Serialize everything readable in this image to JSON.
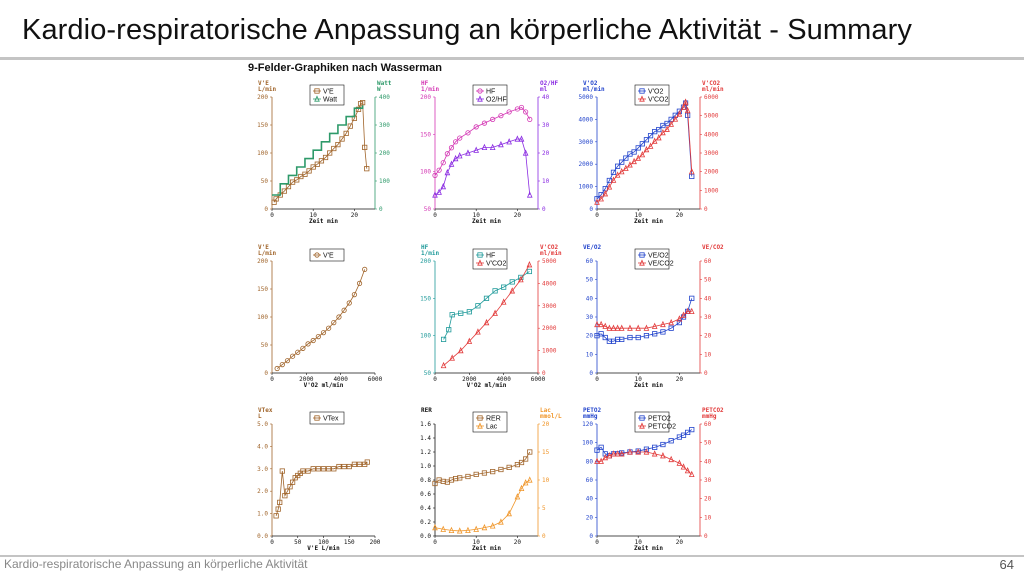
{
  "slide": {
    "title": "Kardio-respiratorische Anpassung an körperliche Aktivität - Summary",
    "footer": "Kardio-respiratorische Anpassung an körperliche Aktivität",
    "page_number": "64",
    "figure_heading": "9-Felder-Graphiken nach Wasserman"
  },
  "colors": {
    "brown": "#a0642a",
    "green": "#2e9a6a",
    "magenta": "#d436b4",
    "purple": "#8a2be2",
    "blue": "#2244cc",
    "red": "#e23a3a",
    "teal": "#1f9a9a",
    "orange": "#f0962a",
    "black": "#111111"
  },
  "chart_data": [
    {
      "type": "line",
      "panel": 1,
      "xlabel": "Zeit  min",
      "x_ticks": [
        "0",
        "10",
        "20"
      ],
      "xlim": [
        0,
        25
      ],
      "left_axis": {
        "label": "V'E",
        "unit": "L/min",
        "ticks": [
          "0",
          "50",
          "100",
          "150",
          "200"
        ],
        "lim": [
          0,
          200
        ],
        "color": "brown"
      },
      "right_axis": {
        "label": "Watt",
        "unit": "W",
        "ticks": [
          "0",
          "100",
          "200",
          "300",
          "400"
        ],
        "lim": [
          0,
          400
        ],
        "color": "green"
      },
      "series": [
        {
          "name": "V'E",
          "axis": "left",
          "color": "brown",
          "marker": "square",
          "x": [
            0.5,
            1,
            2,
            3,
            4,
            5,
            6,
            7,
            8,
            9,
            10,
            11,
            12,
            13,
            14,
            15,
            16,
            17,
            18,
            19,
            20,
            21,
            21.5,
            22,
            22.5,
            23
          ],
          "y": [
            12,
            18,
            25,
            32,
            40,
            48,
            52,
            58,
            62,
            68,
            75,
            80,
            86,
            92,
            100,
            108,
            115,
            125,
            135,
            148,
            162,
            178,
            188,
            190,
            110,
            72
          ]
        },
        {
          "name": "Watt",
          "axis": "right",
          "color": "green",
          "marker": "triangle",
          "step": true,
          "x": [
            0,
            2,
            2,
            4,
            4,
            6,
            6,
            8,
            8,
            10,
            10,
            12,
            12,
            14,
            14,
            16,
            16,
            18,
            18,
            20,
            20,
            22,
            22
          ],
          "y": [
            50,
            50,
            90,
            90,
            120,
            120,
            150,
            150,
            180,
            180,
            210,
            210,
            240,
            240,
            270,
            270,
            300,
            300,
            330,
            330,
            360,
            360,
            370
          ]
        }
      ]
    },
    {
      "type": "line",
      "panel": 2,
      "xlabel": "Zeit  min",
      "x_ticks": [
        "0",
        "10",
        "20"
      ],
      "xlim": [
        0,
        25
      ],
      "left_axis": {
        "label": "HF",
        "unit": "1/min",
        "ticks": [
          "50",
          "100",
          "150",
          "200"
        ],
        "lim": [
          50,
          200
        ],
        "color": "magenta"
      },
      "right_axis": {
        "label": "O2/HF",
        "unit": "ml",
        "ticks": [
          "0",
          "10",
          "20",
          "30",
          "40"
        ],
        "lim": [
          0,
          40
        ],
        "color": "purple"
      },
      "series": [
        {
          "name": "HF",
          "axis": "left",
          "color": "magenta",
          "marker": "circle",
          "x": [
            0,
            1,
            2,
            3,
            4,
            5,
            6,
            8,
            10,
            12,
            14,
            16,
            18,
            20,
            21,
            22,
            23
          ],
          "y": [
            95,
            102,
            112,
            124,
            132,
            140,
            145,
            152,
            160,
            165,
            170,
            175,
            180,
            184,
            186,
            180,
            170
          ]
        },
        {
          "name": "O2/HF",
          "axis": "right",
          "color": "purple",
          "marker": "triangle",
          "x": [
            0,
            1,
            2,
            3,
            4,
            5,
            6,
            8,
            10,
            12,
            14,
            16,
            18,
            20,
            21,
            22,
            23
          ],
          "y": [
            5,
            6,
            8,
            13,
            16,
            18,
            19,
            20,
            21,
            22,
            22,
            23,
            24,
            25,
            25,
            20,
            5
          ]
        }
      ]
    },
    {
      "type": "line",
      "panel": 3,
      "xlabel": "Zeit  min",
      "x_ticks": [
        "0",
        "10",
        "20"
      ],
      "xlim": [
        0,
        25
      ],
      "left_axis": {
        "label": "V'O2",
        "unit": "ml/min",
        "ticks": [
          "0",
          "1000",
          "2000",
          "3000",
          "4000",
          "5000"
        ],
        "lim": [
          0,
          5500
        ],
        "color": "blue"
      },
      "right_axis": {
        "label": "V'CO2",
        "unit": "ml/min",
        "ticks": [
          "0",
          "1000",
          "2000",
          "3000",
          "4000",
          "5000",
          "6000"
        ],
        "lim": [
          0,
          6600
        ],
        "color": "red"
      },
      "series": [
        {
          "name": "V'O2",
          "axis": "left",
          "color": "blue",
          "marker": "square",
          "x": [
            0,
            1,
            2,
            3,
            4,
            5,
            6,
            7,
            8,
            9,
            10,
            11,
            12,
            13,
            14,
            15,
            16,
            17,
            18,
            19,
            20,
            21,
            21.5,
            22,
            23
          ],
          "y": [
            500,
            700,
            1000,
            1400,
            1800,
            2100,
            2300,
            2500,
            2700,
            2800,
            3000,
            3200,
            3400,
            3600,
            3800,
            3900,
            4100,
            4200,
            4400,
            4600,
            4800,
            5000,
            5200,
            4600,
            1600
          ]
        },
        {
          "name": "V'CO2",
          "axis": "right",
          "color": "red",
          "marker": "triangle",
          "x": [
            0,
            1,
            2,
            3,
            4,
            5,
            6,
            7,
            8,
            9,
            10,
            11,
            12,
            13,
            14,
            15,
            16,
            17,
            18,
            19,
            20,
            21,
            21.5,
            22,
            23
          ],
          "y": [
            400,
            600,
            900,
            1300,
            1700,
            2000,
            2200,
            2400,
            2600,
            2800,
            3000,
            3200,
            3500,
            3700,
            4000,
            4200,
            4500,
            4700,
            5000,
            5300,
            5600,
            6000,
            6300,
            5800,
            2200
          ]
        }
      ]
    },
    {
      "type": "scatter",
      "panel": 4,
      "xlabel": "V'O2  ml/min",
      "x_ticks": [
        "0",
        "2000",
        "4000",
        "6000"
      ],
      "xlim": [
        0,
        6000
      ],
      "left_axis": {
        "label": "V'E",
        "unit": "L/min",
        "ticks": [
          "0",
          "50",
          "100",
          "150",
          "200"
        ],
        "lim": [
          0,
          200
        ],
        "color": "brown"
      },
      "series": [
        {
          "name": "V'E",
          "axis": "left",
          "color": "brown",
          "marker": "circle",
          "x": [
            300,
            600,
            900,
            1200,
            1500,
            1800,
            2100,
            2400,
            2700,
            3000,
            3300,
            3600,
            3900,
            4200,
            4500,
            4800,
            5100,
            5400
          ],
          "y": [
            8,
            15,
            22,
            30,
            37,
            44,
            52,
            58,
            65,
            72,
            80,
            90,
            100,
            112,
            125,
            140,
            160,
            185
          ]
        }
      ]
    },
    {
      "type": "line",
      "panel": 5,
      "xlabel": "V'O2  ml/min",
      "x_ticks": [
        "0",
        "2000",
        "4000",
        "6000"
      ],
      "xlim": [
        0,
        6000
      ],
      "left_axis": {
        "label": "HF",
        "unit": "1/min",
        "ticks": [
          "50",
          "100",
          "150",
          "200"
        ],
        "lim": [
          50,
          200
        ],
        "color": "teal"
      },
      "right_axis": {
        "label": "V'CO2",
        "unit": "ml/min",
        "ticks": [
          "0",
          "1000",
          "2000",
          "3000",
          "4000",
          "5000"
        ],
        "lim": [
          0,
          6000
        ],
        "color": "red"
      },
      "series": [
        {
          "name": "HF",
          "axis": "left",
          "color": "teal",
          "marker": "square",
          "x": [
            500,
            800,
            1000,
            1500,
            2000,
            2500,
            3000,
            3500,
            4000,
            4500,
            5000,
            5500
          ],
          "y": [
            95,
            108,
            128,
            130,
            132,
            140,
            150,
            160,
            165,
            172,
            178,
            186
          ]
        },
        {
          "name": "V'CO2",
          "axis": "right",
          "color": "red",
          "marker": "triangle",
          "x": [
            500,
            1000,
            1500,
            2000,
            2500,
            3000,
            3500,
            4000,
            4500,
            5000,
            5500
          ],
          "y": [
            400,
            800,
            1200,
            1700,
            2200,
            2700,
            3200,
            3800,
            4400,
            5000,
            5800
          ]
        }
      ]
    },
    {
      "type": "line",
      "panel": 6,
      "xlabel": "Zeit  min",
      "x_ticks": [
        "0",
        "10",
        "20"
      ],
      "xlim": [
        0,
        25
      ],
      "left_axis": {
        "label": "VE/O2",
        "unit": "",
        "ticks": [
          "0",
          "10",
          "20",
          "30",
          "40",
          "50",
          "60"
        ],
        "lim": [
          0,
          60
        ],
        "color": "blue"
      },
      "right_axis": {
        "label": "VE/CO2",
        "unit": "",
        "ticks": [
          "0",
          "10",
          "20",
          "30",
          "40",
          "50",
          "60"
        ],
        "lim": [
          0,
          60
        ],
        "color": "red"
      },
      "series": [
        {
          "name": "VE/O2",
          "axis": "left",
          "color": "blue",
          "marker": "square",
          "x": [
            0,
            1,
            2,
            3,
            4,
            5,
            6,
            8,
            10,
            12,
            14,
            16,
            18,
            20,
            21,
            22,
            23
          ],
          "y": [
            20,
            21,
            19,
            17,
            17,
            18,
            18,
            19,
            19,
            20,
            21,
            22,
            24,
            27,
            30,
            33,
            40
          ]
        },
        {
          "name": "VE/CO2",
          "axis": "right",
          "color": "red",
          "marker": "triangle",
          "x": [
            0,
            1,
            2,
            3,
            4,
            5,
            6,
            8,
            10,
            12,
            14,
            16,
            18,
            20,
            21,
            22,
            23
          ],
          "y": [
            26,
            26,
            25,
            24,
            24,
            24,
            24,
            24,
            24,
            24,
            25,
            26,
            27,
            29,
            31,
            33,
            33
          ]
        }
      ]
    },
    {
      "type": "scatter",
      "panel": 7,
      "xlabel": "V'E  L/min",
      "x_ticks": [
        "0",
        "50",
        "100",
        "150",
        "200"
      ],
      "xlim": [
        0,
        200
      ],
      "left_axis": {
        "label": "VTex",
        "unit": "L",
        "ticks": [
          "0.0",
          "1.0",
          "2.0",
          "3.0",
          "4.0",
          "5.0"
        ],
        "lim": [
          0,
          5
        ],
        "color": "brown"
      },
      "series": [
        {
          "name": "VTex",
          "axis": "left",
          "color": "brown",
          "marker": "square",
          "x": [
            8,
            12,
            15,
            20,
            25,
            30,
            35,
            40,
            45,
            50,
            55,
            60,
            70,
            80,
            90,
            100,
            110,
            120,
            130,
            140,
            150,
            160,
            170,
            180,
            185
          ],
          "y": [
            0.9,
            1.2,
            1.5,
            2.9,
            1.8,
            2.0,
            2.2,
            2.4,
            2.6,
            2.7,
            2.8,
            2.9,
            2.9,
            3.0,
            3.0,
            3.0,
            3.0,
            3.0,
            3.1,
            3.1,
            3.1,
            3.2,
            3.2,
            3.2,
            3.3
          ]
        }
      ]
    },
    {
      "type": "line",
      "panel": 8,
      "xlabel": "Zeit  min",
      "x_ticks": [
        "0",
        "10",
        "20"
      ],
      "xlim": [
        0,
        25
      ],
      "left_axis": {
        "label": "RER",
        "unit": "",
        "ticks": [
          "0.0",
          "0.2",
          "0.4",
          "0.6",
          "0.8",
          "1.0",
          "1.2",
          "1.4",
          "1.6"
        ],
        "lim": [
          0,
          1.6
        ],
        "color": "black"
      },
      "right_axis": {
        "label": "Lac",
        "unit": "mmol/L",
        "ticks": [
          "0",
          "5",
          "10",
          "15",
          "20"
        ],
        "lim": [
          0,
          20
        ],
        "color": "orange"
      },
      "series": [
        {
          "name": "RER",
          "axis": "left",
          "color": "brown",
          "marker": "square",
          "x": [
            0,
            1,
            2,
            3,
            4,
            5,
            6,
            8,
            10,
            12,
            14,
            16,
            18,
            20,
            21,
            22,
            23
          ],
          "y": [
            0.75,
            0.8,
            0.78,
            0.77,
            0.8,
            0.82,
            0.83,
            0.85,
            0.88,
            0.9,
            0.92,
            0.95,
            0.98,
            1.02,
            1.05,
            1.1,
            1.2
          ]
        },
        {
          "name": "Lac",
          "axis": "right",
          "color": "orange",
          "marker": "triangle",
          "x": [
            0,
            2,
            4,
            6,
            8,
            10,
            12,
            14,
            16,
            18,
            20,
            21,
            22,
            23
          ],
          "y": [
            1.5,
            1.2,
            1.0,
            0.9,
            1.0,
            1.2,
            1.5,
            1.8,
            2.5,
            4,
            7,
            8.5,
            9.5,
            10
          ]
        }
      ]
    },
    {
      "type": "line",
      "panel": 9,
      "xlabel": "Zeit  min",
      "x_ticks": [
        "0",
        "10",
        "20"
      ],
      "xlim": [
        0,
        25
      ],
      "left_axis": {
        "label": "PETO2",
        "unit": "mmHg",
        "ticks": [
          "0",
          "20",
          "40",
          "60",
          "80",
          "100",
          "120"
        ],
        "lim": [
          0,
          120
        ],
        "color": "blue"
      },
      "right_axis": {
        "label": "PETCO2",
        "unit": "mmHg",
        "ticks": [
          "0",
          "10",
          "20",
          "30",
          "40",
          "50",
          "60"
        ],
        "lim": [
          0,
          60
        ],
        "color": "red"
      },
      "series": [
        {
          "name": "PETO2",
          "axis": "left",
          "color": "blue",
          "marker": "square",
          "x": [
            0,
            1,
            2,
            3,
            4,
            5,
            6,
            8,
            10,
            12,
            14,
            16,
            18,
            20,
            21,
            22,
            23
          ],
          "y": [
            92,
            95,
            88,
            86,
            88,
            88,
            89,
            90,
            91,
            93,
            95,
            98,
            102,
            106,
            108,
            111,
            114
          ]
        },
        {
          "name": "PETCO2",
          "axis": "right",
          "color": "red",
          "marker": "triangle",
          "x": [
            0,
            1,
            2,
            3,
            4,
            5,
            6,
            8,
            10,
            12,
            14,
            16,
            18,
            20,
            21,
            22,
            23
          ],
          "y": [
            40,
            40,
            42,
            43,
            44,
            44,
            44,
            45,
            45,
            45,
            44,
            43,
            41,
            39,
            37,
            35,
            33
          ]
        }
      ]
    }
  ]
}
